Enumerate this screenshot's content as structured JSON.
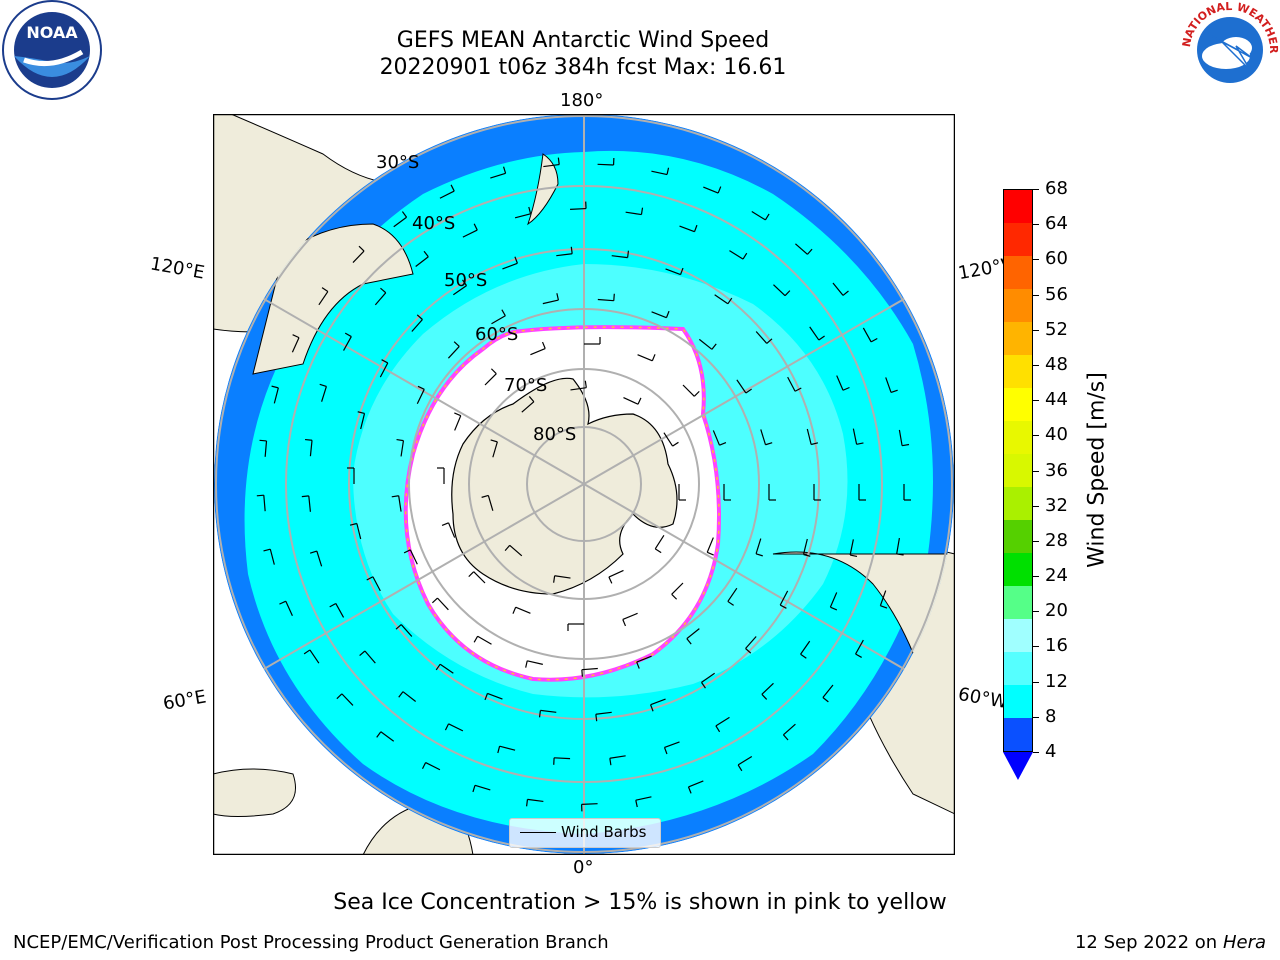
{
  "header": {
    "title_line1": "GEFS MEAN Antarctic Wind Speed",
    "title_line2": "20220901 t06z 384h fcst   Max: 16.61"
  },
  "logos": {
    "left": {
      "text": "NOAA",
      "icon": "noaa-logo"
    },
    "right": {
      "text": "NATIONAL WEATHER SERVICE",
      "icon": "nws-logo"
    }
  },
  "map": {
    "projection": "south-polar-stereographic",
    "longitude_labels": {
      "top": "180°",
      "bottom": "0°",
      "left_upper": "120°E",
      "left_lower": "60°E",
      "right_upper": "120°W",
      "right_lower": "60°W"
    },
    "latitude_labels": [
      "30°S",
      "40°S",
      "50°S",
      "60°S",
      "70°S",
      "80°S"
    ],
    "legend_label": "Wind Barbs",
    "colors": {
      "ocean_low": "#0a7fff",
      "ocean_mid": "#00ffff",
      "ocean_high": "#55ffff",
      "land": "#efecdb",
      "ice": "#ffffff",
      "ice_edge_pink": "#ff44ff",
      "ice_edge_yellow": "#ffc030"
    }
  },
  "colorbar": {
    "label": "Wind Speed [m/s]",
    "ticks": [
      "68",
      "64",
      "60",
      "56",
      "52",
      "48",
      "44",
      "40",
      "36",
      "32",
      "28",
      "24",
      "20",
      "16",
      "12",
      "8",
      "4"
    ],
    "colors_bottom_to_top": [
      "#0a50ff",
      "#00ffff",
      "#55ffff",
      "#a0ffff",
      "#55ff88",
      "#00e000",
      "#55d000",
      "#aaf000",
      "#d8f800",
      "#e8f800",
      "#ffff00",
      "#ffe000",
      "#ffb400",
      "#ff8c00",
      "#ff6400",
      "#ff2800",
      "#ff0000"
    ],
    "extend_color": "#0000ff"
  },
  "caption": "Sea Ice Concentration > 15% is shown in pink to yellow",
  "footer": {
    "left": "NCEP/EMC/Verification Post Processing Product Generation Branch",
    "right_date": "12 Sep 2022 on",
    "right_host": "Hera"
  }
}
